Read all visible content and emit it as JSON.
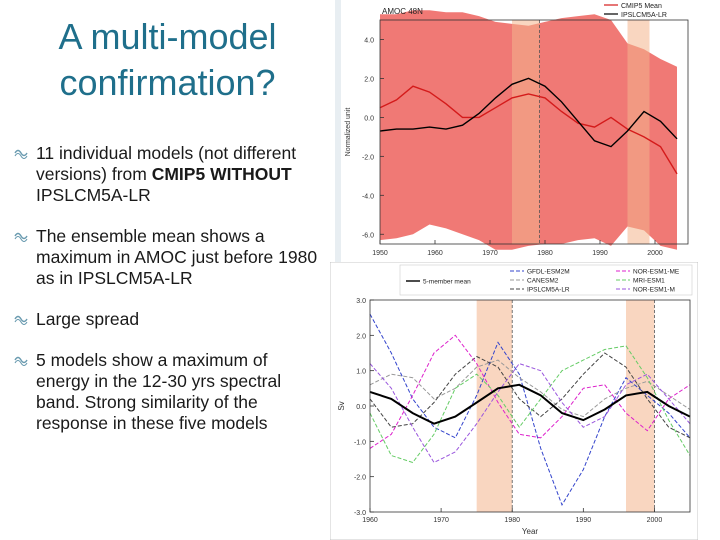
{
  "slide": {
    "title_line1": "A multi-model",
    "title_line2": "confirmation?",
    "bullets": [
      {
        "parts": [
          {
            "text": "11 individual models (not different versions) from ",
            "bold": false
          },
          {
            "text": "CMIP5 WITHOUT",
            "bold": true
          },
          {
            "text": " IPSLCM5A-LR",
            "bold": false
          }
        ]
      },
      {
        "parts": [
          {
            "text": "The ensemble mean shows a maximum in AMOC just before 1980 as in IPSLCM5A-LR",
            "bold": false
          }
        ]
      },
      {
        "parts": [
          {
            "text": "Large spread",
            "bold": false
          }
        ]
      },
      {
        "parts": [
          {
            "text": "5 models show a maximum of energy in the 12-30 yrs spectral band. Strong similarity of the response in these five models",
            "bold": false
          }
        ]
      }
    ]
  },
  "colors": {
    "title": "#1f6f8b",
    "bullet_icon": "#6a9bb0",
    "spread_fill": "#ee6a66",
    "cmip5_mean": "#d41b1b",
    "ipsl": "#000000",
    "highlight": "#f4b48c"
  },
  "chart_data": [
    {
      "type": "line",
      "title": "AMOC 48N",
      "ylabel": "Normalized unit",
      "x": [
        1950,
        1953,
        1956,
        1959,
        1962,
        1965,
        1968,
        1971,
        1974,
        1977,
        1980,
        1983,
        1986,
        1989,
        1992,
        1995,
        1998,
        2001,
        2004
      ],
      "xlim": [
        1950,
        2006
      ],
      "ylim": [
        -6.5,
        5
      ],
      "xticks": [
        {
          "v": 1950,
          "label": "1950"
        },
        {
          "v": 1960,
          "label": "1960"
        },
        {
          "v": 1970,
          "label": "1970"
        },
        {
          "v": 1980,
          "label": "1980"
        },
        {
          "v": 1990,
          "label": "1990"
        },
        {
          "v": 2000,
          "label": "2000"
        }
      ],
      "yticks": [
        {
          "v": 4,
          "label": "4.0"
        },
        {
          "v": 2,
          "label": "2.0"
        },
        {
          "v": 0,
          "label": "0.0"
        },
        {
          "v": -2,
          "label": "-2.0"
        },
        {
          "v": -4,
          "label": "-4.0"
        },
        {
          "v": -6,
          "label": "-6.0"
        }
      ],
      "band": {
        "upper": [
          5.3,
          5.3,
          5.5,
          5.5,
          5.4,
          5.4,
          5.2,
          4.9,
          4.8,
          4.7,
          4.9,
          5.1,
          5.2,
          5.3,
          5.0,
          3.8,
          3.5,
          3.0,
          2.6
        ],
        "lower": [
          -6.3,
          -6.2,
          -6.0,
          -5.5,
          -5.7,
          -6.0,
          -6.3,
          -6.8,
          -6.8,
          -6.6,
          -6.5,
          -6.5,
          -6.3,
          -6.2,
          -6.6,
          -5.6,
          -5.8,
          -6.6,
          -6.8
        ]
      },
      "highlights": [
        [
          1974,
          1979
        ],
        [
          1995,
          1999
        ]
      ],
      "series": [
        {
          "name": "CMIP5 Mean",
          "color": "#d41b1b",
          "values": [
            0.5,
            0.9,
            1.6,
            1.3,
            0.7,
            0.0,
            0.0,
            0.5,
            1.0,
            1.2,
            1.0,
            0.3,
            -0.3,
            -0.5,
            0.0,
            -0.6,
            -1.0,
            -1.5,
            -2.9
          ]
        },
        {
          "name": "IPSLCM5A-LR",
          "color": "#000000",
          "values": [
            -0.7,
            -0.6,
            -0.6,
            -0.5,
            -0.6,
            -0.4,
            0.2,
            1.0,
            1.7,
            2.0,
            1.6,
            0.8,
            -0.2,
            -1.2,
            -1.5,
            -0.7,
            0.3,
            -0.2,
            -1.1
          ]
        }
      ],
      "legend": [
        "CMIP5 Mean",
        "IPSLCM5A-LR"
      ]
    },
    {
      "type": "line",
      "xlabel": "Year",
      "ylabel": "Sv",
      "x": [
        1960,
        1963,
        1966,
        1969,
        1972,
        1975,
        1978,
        1981,
        1984,
        1987,
        1990,
        1993,
        1996,
        1999,
        2002,
        2005
      ],
      "xlim": [
        1960,
        2005
      ],
      "ylim": [
        -3,
        3
      ],
      "xticks": [
        {
          "v": 1960,
          "label": "1960"
        },
        {
          "v": 1970,
          "label": "1970"
        },
        {
          "v": 1980,
          "label": "1980"
        },
        {
          "v": 1990,
          "label": "1990"
        },
        {
          "v": 2000,
          "label": "2000"
        }
      ],
      "yticks": [
        {
          "v": 3,
          "label": "3.0"
        },
        {
          "v": 2,
          "label": "2.0"
        },
        {
          "v": 1,
          "label": "1.0"
        },
        {
          "v": 0,
          "label": "0.0"
        },
        {
          "v": -1,
          "label": "-1.0"
        },
        {
          "v": -2,
          "label": "-2.0"
        },
        {
          "v": -3,
          "label": "-3.0"
        }
      ],
      "highlights": [
        [
          1975,
          1980
        ],
        [
          1996,
          2000
        ]
      ],
      "series": [
        {
          "name": "5-member mean",
          "color": "#000000",
          "width": 2,
          "dash": "",
          "values": [
            0.4,
            0.2,
            -0.2,
            -0.5,
            -0.3,
            0.1,
            0.5,
            0.6,
            0.3,
            -0.2,
            -0.4,
            -0.1,
            0.3,
            0.4,
            0.0,
            -0.3
          ]
        },
        {
          "name": "GFDL-ESM2M",
          "color": "#3344cc",
          "width": 1,
          "dash": "4,2",
          "values": [
            2.6,
            1.5,
            0.2,
            -0.6,
            -0.9,
            0.3,
            1.8,
            0.9,
            -1.2,
            -2.8,
            -1.8,
            -0.3,
            0.8,
            0.3,
            -0.2,
            -0.9
          ]
        },
        {
          "name": "CANESM2",
          "color": "#999999",
          "width": 1,
          "dash": "4,2",
          "values": [
            0.6,
            0.9,
            0.8,
            0.2,
            0.5,
            1.1,
            1.3,
            0.8,
            0.4,
            -0.1,
            -0.3,
            0.2,
            0.5,
            0.7,
            0.3,
            -0.1
          ]
        },
        {
          "name": "IPSLCM5A-LR",
          "color": "#444444",
          "width": 1,
          "dash": "4,2",
          "values": [
            0.2,
            -0.6,
            -0.5,
            0.1,
            0.9,
            1.4,
            1.1,
            0.2,
            -0.3,
            0.2,
            0.9,
            1.5,
            1.1,
            0.2,
            -0.6,
            -0.9
          ]
        },
        {
          "name": "NOR-ESM1-ME",
          "color": "#dd22cc",
          "width": 1,
          "dash": "4,2",
          "values": [
            -1.2,
            -0.8,
            0.3,
            1.5,
            2.0,
            1.2,
            0.1,
            -0.8,
            -0.9,
            -0.3,
            0.5,
            0.6,
            -0.2,
            -0.7,
            0.2,
            0.6
          ]
        },
        {
          "name": "MRI-ESM1",
          "color": "#66cc66",
          "width": 1,
          "dash": "4,2",
          "values": [
            -0.2,
            -1.4,
            -1.6,
            -0.8,
            0.5,
            0.9,
            0.3,
            -0.6,
            0.2,
            1.0,
            1.3,
            1.6,
            1.7,
            0.8,
            -0.4,
            -1.4
          ]
        },
        {
          "name": "NOR-ESM1-M",
          "color": "#9955dd",
          "width": 1,
          "dash": "4,2",
          "values": [
            1.2,
            0.5,
            -0.6,
            -1.6,
            -1.3,
            -0.5,
            0.4,
            1.2,
            1.0,
            0.1,
            -0.6,
            -0.3,
            0.6,
            0.9,
            0.2,
            -0.5
          ]
        }
      ],
      "legend": [
        "5-member mean",
        "GFDL-ESM2M",
        "CANESM2",
        "IPSLCM5A-LR",
        "NOR-ESM1-ME",
        "MRI-ESM1",
        "NOR-ESM1-M"
      ]
    }
  ]
}
